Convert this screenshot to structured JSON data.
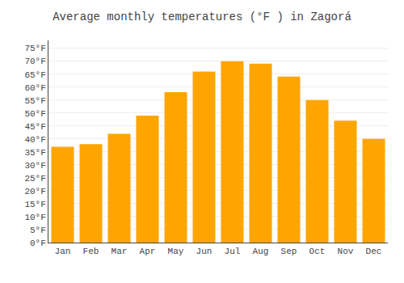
{
  "chart_data": {
    "type": "bar",
    "title": "Average monthly temperatures (°F ) in Zagorá",
    "categories": [
      "Jan",
      "Feb",
      "Mar",
      "Apr",
      "May",
      "Jun",
      "Jul",
      "Aug",
      "Sep",
      "Oct",
      "Nov",
      "Dec"
    ],
    "values": [
      37,
      38,
      42,
      49,
      58,
      66,
      70,
      69,
      64,
      55,
      47,
      40
    ],
    "color": "#FFA500",
    "ylim": [
      0,
      78
    ],
    "yticks": [
      {
        "value": 0,
        "label": "0°F"
      },
      {
        "value": 5,
        "label": "5°F"
      },
      {
        "value": 10,
        "label": "10°F"
      },
      {
        "value": 15,
        "label": "15°F"
      },
      {
        "value": 20,
        "label": "20°F"
      },
      {
        "value": 25,
        "label": "25°F"
      },
      {
        "value": 30,
        "label": "30°F"
      },
      {
        "value": 35,
        "label": "35°F"
      },
      {
        "value": 40,
        "label": "40°F"
      },
      {
        "value": 45,
        "label": "45°F"
      },
      {
        "value": 50,
        "label": "50°F"
      },
      {
        "value": 55,
        "label": "55°F"
      },
      {
        "value": 60,
        "label": "60°F"
      },
      {
        "value": 65,
        "label": "65°F"
      },
      {
        "value": 70,
        "label": "70°F"
      },
      {
        "value": 75,
        "label": "75°F"
      }
    ],
    "grid": true
  }
}
